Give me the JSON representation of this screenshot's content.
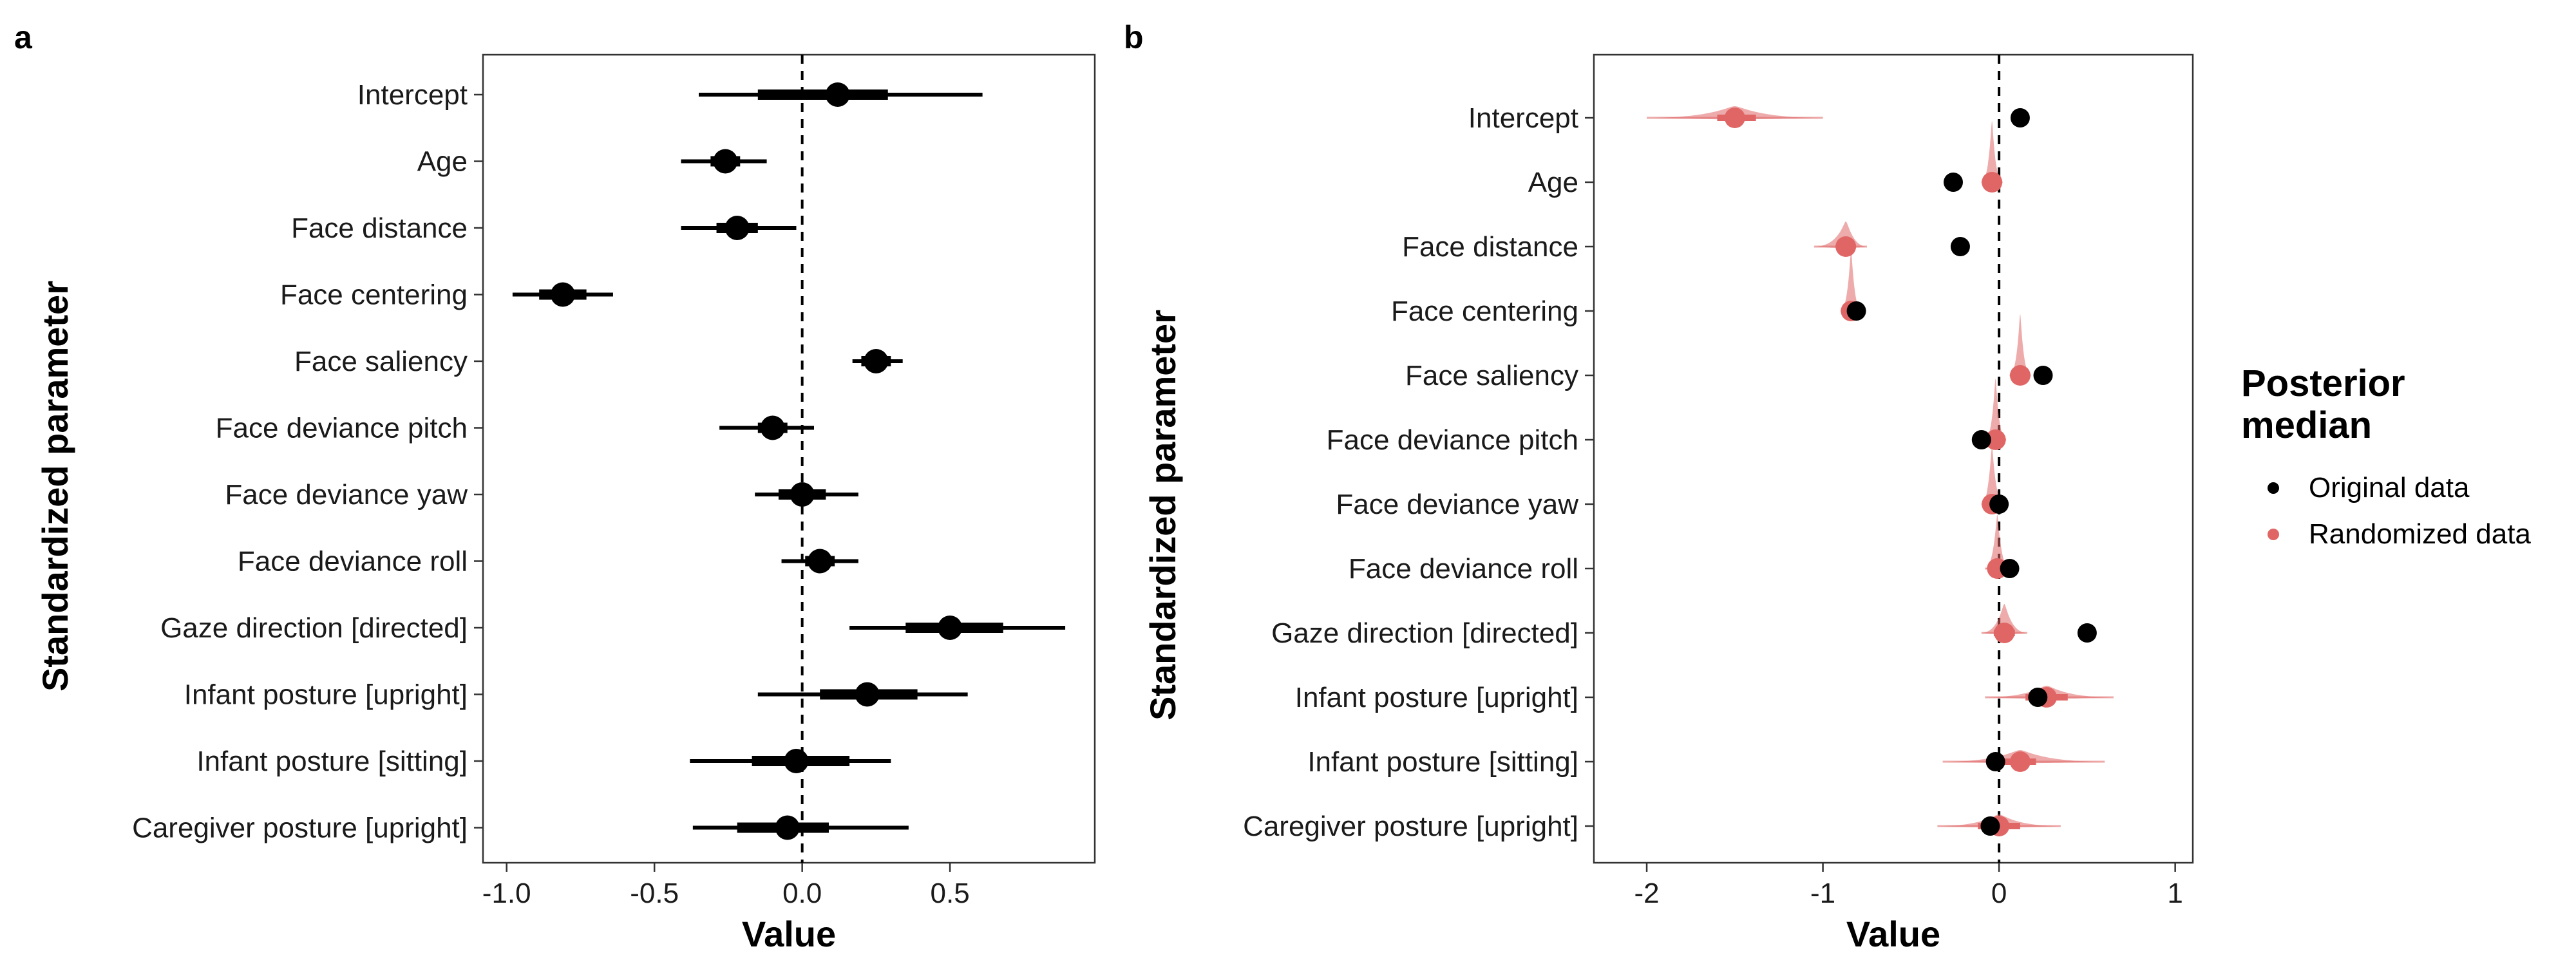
{
  "chart_data": [
    {
      "type": "interval",
      "panel_label": "a",
      "xlabel": "Value",
      "ylabel": "Standardized parameter",
      "xlim": [
        -1.08,
        0.99
      ],
      "xticks": [
        -1.0,
        -0.5,
        0.0,
        0.5
      ],
      "xtick_labels": [
        "-1.0",
        "-0.5",
        "0.0",
        "0.5"
      ],
      "reference_line_x": 0,
      "grid": false,
      "categories": [
        "Intercept",
        "Age",
        "Face distance",
        "Face centering",
        "Face saliency",
        "Face deviance pitch",
        "Face deviance yaw",
        "Face deviance roll",
        "Gaze direction [directed]",
        "Infant posture [upright]",
        "Infant posture [sitting]",
        "Caregiver posture [upright]"
      ],
      "series": [
        {
          "color": "#000000",
          "median": [
            0.12,
            -0.26,
            -0.22,
            -0.81,
            0.25,
            -0.1,
            0.0,
            0.06,
            0.5,
            0.22,
            -0.02,
            -0.05
          ],
          "inner_interval": [
            [
              -0.15,
              0.29
            ],
            [
              -0.31,
              -0.21
            ],
            [
              -0.29,
              -0.15
            ],
            [
              -0.89,
              -0.73
            ],
            [
              0.2,
              0.3
            ],
            [
              -0.15,
              -0.05
            ],
            [
              -0.08,
              0.08
            ],
            [
              0.01,
              0.11
            ],
            [
              0.35,
              0.68
            ],
            [
              0.06,
              0.39
            ],
            [
              -0.17,
              0.16
            ],
            [
              -0.22,
              0.09
            ]
          ],
          "outer_interval": [
            [
              -0.35,
              0.61
            ],
            [
              -0.41,
              -0.12
            ],
            [
              -0.41,
              -0.02
            ],
            [
              -0.98,
              -0.64
            ],
            [
              0.17,
              0.34
            ],
            [
              -0.28,
              0.04
            ],
            [
              -0.16,
              0.19
            ],
            [
              -0.07,
              0.19
            ],
            [
              0.16,
              0.89
            ],
            [
              -0.15,
              0.56
            ],
            [
              -0.38,
              0.3
            ],
            [
              -0.37,
              0.36
            ]
          ]
        }
      ]
    },
    {
      "type": "interval",
      "panel_label": "b",
      "xlabel": "Value",
      "ylabel": "Standardized parameter",
      "xlim": [
        -2.3,
        1.1
      ],
      "xticks": [
        -2,
        -1,
        0,
        1
      ],
      "xtick_labels": [
        "-2",
        "-1",
        "0",
        "1"
      ],
      "reference_line_x": 0,
      "grid": false,
      "categories": [
        "Intercept",
        "Age",
        "Face distance",
        "Face centering",
        "Face saliency",
        "Face deviance pitch",
        "Face deviance yaw",
        "Face deviance roll",
        "Gaze direction [directed]",
        "Infant posture [upright]",
        "Infant posture [sitting]",
        "Caregiver posture [upright]"
      ],
      "series": [
        {
          "name": "Original data",
          "color": "#000000",
          "median": [
            0.12,
            -0.26,
            -0.22,
            -0.81,
            0.25,
            -0.1,
            0.0,
            0.06,
            0.5,
            0.22,
            -0.02,
            -0.05
          ]
        },
        {
          "name": "Randomized data",
          "color": "#e06666",
          "median": [
            -1.5,
            -0.04,
            -0.87,
            -0.84,
            0.12,
            -0.02,
            -0.04,
            -0.01,
            0.03,
            0.27,
            0.12,
            0.0
          ],
          "inner_interval": [
            [
              -1.6,
              -1.38
            ],
            [
              -0.07,
              -0.01
            ],
            [
              -0.92,
              -0.82
            ],
            [
              -0.86,
              -0.82
            ],
            [
              0.09,
              0.15
            ],
            [
              -0.05,
              0.01
            ],
            [
              -0.07,
              -0.01
            ],
            [
              -0.04,
              0.02
            ],
            [
              -0.03,
              0.09
            ],
            [
              0.15,
              0.39
            ],
            [
              0.03,
              0.21
            ],
            [
              -0.12,
              0.12
            ]
          ],
          "outer_interval": [
            [
              -2.0,
              -1.0
            ],
            [
              -0.1,
              0.02
            ],
            [
              -1.05,
              -0.75
            ],
            [
              -0.9,
              -0.78
            ],
            [
              0.06,
              0.18
            ],
            [
              -0.08,
              0.04
            ],
            [
              -0.1,
              0.03
            ],
            [
              -0.08,
              0.06
            ],
            [
              -0.1,
              0.16
            ],
            [
              -0.08,
              0.65
            ],
            [
              -0.32,
              0.6
            ],
            [
              -0.35,
              0.35
            ]
          ]
        }
      ],
      "legend": {
        "title": "Posterior median",
        "title_lines": [
          "Posterior",
          "median"
        ],
        "position": "right",
        "items": [
          "Original data",
          "Randomized data"
        ]
      }
    }
  ]
}
